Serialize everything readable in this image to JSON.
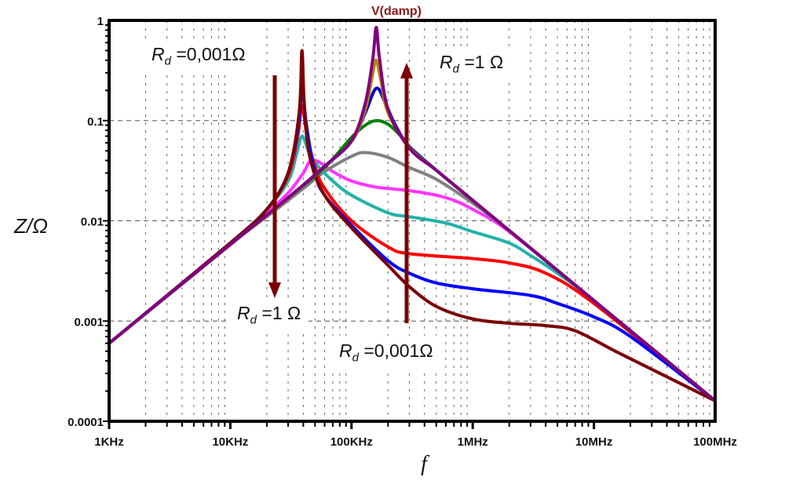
{
  "chart_data": {
    "type": "line",
    "title": "V(damp)",
    "xlabel": "f",
    "ylabel": "Z/Ω",
    "xscale": "log",
    "yscale": "log",
    "xlim": [
      1000.0,
      100000000.0
    ],
    "ylim": [
      0.0001,
      1
    ],
    "grid": true,
    "x_ticks": [
      {
        "value": 1000.0,
        "label": "1KHz"
      },
      {
        "value": 10000.0,
        "label": "10KHz"
      },
      {
        "value": 100000.0,
        "label": "100KHz"
      },
      {
        "value": 1000000.0,
        "label": "1MHz"
      },
      {
        "value": 10000000.0,
        "label": "10MHz"
      },
      {
        "value": 100000000.0,
        "label": "100MHz"
      }
    ],
    "y_ticks": [
      {
        "value": 1,
        "label": "1"
      },
      {
        "value": 0.1,
        "label": "0.1"
      },
      {
        "value": 0.01,
        "label": "0.01"
      },
      {
        "value": 0.001,
        "label": "0.001"
      },
      {
        "value": 0.0001,
        "label": "0.0001"
      }
    ],
    "series": [
      {
        "color": "#ff33ff",
        "points": [
          [
            1000.0,
            0.0006
          ],
          [
            10000.0,
            0.006
          ],
          [
            20000.0,
            0.012
          ],
          [
            30000.0,
            0.019
          ],
          [
            40000.0,
            0.03
          ],
          [
            46000.0,
            0.04
          ],
          [
            55000.0,
            0.038
          ],
          [
            70000.0,
            0.031
          ],
          [
            100000.0,
            0.025
          ],
          [
            150000.0,
            0.022
          ],
          [
            200000.0,
            0.021
          ],
          [
            300000.0,
            0.02
          ],
          [
            500000.0,
            0.018
          ],
          [
            700000.0,
            0.016
          ],
          [
            1000000.0,
            0.013
          ],
          [
            2000000.0,
            0.0078
          ],
          [
            10000000.0,
            0.0016
          ],
          [
            100000000.0,
            0.00016
          ]
        ]
      },
      {
        "color": "#808080",
        "points": [
          [
            1000.0,
            0.0006
          ],
          [
            10000.0,
            0.0058
          ],
          [
            20000.0,
            0.011
          ],
          [
            40000.0,
            0.021
          ],
          [
            60000.0,
            0.031
          ],
          [
            100000.0,
            0.044
          ],
          [
            130000.0,
            0.048
          ],
          [
            200000.0,
            0.043
          ],
          [
            300000.0,
            0.034
          ],
          [
            500000.0,
            0.026
          ],
          [
            1000000.0,
            0.015
          ],
          [
            2000000.0,
            0.008
          ],
          [
            10000000.0,
            0.0016
          ],
          [
            100000000.0,
            0.00016
          ]
        ]
      },
      {
        "color": "#20b2aa",
        "points": [
          [
            1000.0,
            0.0006
          ],
          [
            10000.0,
            0.006
          ],
          [
            20000.0,
            0.013
          ],
          [
            30000.0,
            0.025
          ],
          [
            35000.0,
            0.045
          ],
          [
            39000.0,
            0.07
          ],
          [
            44000.0,
            0.05
          ],
          [
            50000.0,
            0.038
          ],
          [
            70000.0,
            0.025
          ],
          [
            100000.0,
            0.018
          ],
          [
            200000.0,
            0.012
          ],
          [
            300000.0,
            0.011
          ],
          [
            600000.0,
            0.0095
          ],
          [
            1000000.0,
            0.0078
          ],
          [
            2000000.0,
            0.006
          ],
          [
            3000000.0,
            0.0045
          ],
          [
            5000000.0,
            0.003
          ],
          [
            10000000.0,
            0.0016
          ],
          [
            100000000.0,
            0.00016
          ]
        ]
      },
      {
        "color": "#ff0000",
        "points": [
          [
            1000.0,
            0.0006
          ],
          [
            10000.0,
            0.006
          ],
          [
            20000.0,
            0.013
          ],
          [
            30000.0,
            0.028
          ],
          [
            36000.0,
            0.07
          ],
          [
            39000.0,
            0.14
          ],
          [
            43000.0,
            0.07
          ],
          [
            50000.0,
            0.035
          ],
          [
            60000.0,
            0.021
          ],
          [
            100000.0,
            0.01
          ],
          [
            200000.0,
            0.0055
          ],
          [
            300000.0,
            0.0047
          ],
          [
            1000000.0,
            0.0042
          ],
          [
            2000000.0,
            0.0038
          ],
          [
            4000000.0,
            0.003
          ],
          [
            10000000.0,
            0.0015
          ],
          [
            100000000.0,
            0.00016
          ]
        ]
      },
      {
        "color": "#0000ff",
        "points": [
          [
            1000.0,
            0.0006
          ],
          [
            10000.0,
            0.006
          ],
          [
            20000.0,
            0.013
          ],
          [
            30000.0,
            0.03
          ],
          [
            37000.0,
            0.1
          ],
          [
            39000.0,
            0.28
          ],
          [
            42000.0,
            0.1
          ],
          [
            50000.0,
            0.03
          ],
          [
            60000.0,
            0.018
          ],
          [
            100000.0,
            0.009
          ],
          [
            200000.0,
            0.004
          ],
          [
            300000.0,
            0.003
          ],
          [
            500000.0,
            0.0024
          ],
          [
            1000000.0,
            0.0021
          ],
          [
            3000000.0,
            0.0018
          ],
          [
            5000000.0,
            0.0015
          ],
          [
            10000000.0,
            0.0011
          ],
          [
            20000000.0,
            0.0007
          ],
          [
            100000000.0,
            0.00016
          ]
        ]
      },
      {
        "color": "#7b0000",
        "points": [
          [
            1000.0,
            0.0006
          ],
          [
            10000.0,
            0.006
          ],
          [
            20000.0,
            0.013
          ],
          [
            30000.0,
            0.03
          ],
          [
            37000.0,
            0.12
          ],
          [
            39000.0,
            0.5
          ],
          [
            41000.0,
            0.12
          ],
          [
            46000.0,
            0.04
          ],
          [
            60000.0,
            0.018
          ],
          [
            100000.0,
            0.0085
          ],
          [
            200000.0,
            0.0036
          ],
          [
            300000.0,
            0.0022
          ],
          [
            500000.0,
            0.0014
          ],
          [
            1000000.0,
            0.00105
          ],
          [
            2000000.0,
            0.00095
          ],
          [
            4000000.0,
            0.0009
          ],
          [
            7000000.0,
            0.0008
          ],
          [
            15000000.0,
            0.0005
          ],
          [
            30000000.0,
            0.00033
          ],
          [
            100000000.0,
            0.00016
          ]
        ]
      },
      {
        "color": "#008000",
        "points": [
          [
            1000.0,
            0.0006
          ],
          [
            10000.0,
            0.0058
          ],
          [
            30000.0,
            0.017
          ],
          [
            60000.0,
            0.034
          ],
          [
            100000.0,
            0.068
          ],
          [
            130000.0,
            0.09
          ],
          [
            160000.0,
            0.1
          ],
          [
            200000.0,
            0.092
          ],
          [
            250000.0,
            0.072
          ],
          [
            300000.0,
            0.055
          ],
          [
            500000.0,
            0.032
          ],
          [
            1000000.0,
            0.016
          ],
          [
            10000000.0,
            0.0016
          ],
          [
            100000000.0,
            0.00016
          ]
        ]
      },
      {
        "color": "#0000cd",
        "points": [
          [
            1000.0,
            0.0006
          ],
          [
            10000.0,
            0.0058
          ],
          [
            30000.0,
            0.017
          ],
          [
            60000.0,
            0.035
          ],
          [
            100000.0,
            0.062
          ],
          [
            130000.0,
            0.12
          ],
          [
            160000.0,
            0.21
          ],
          [
            190000.0,
            0.15
          ],
          [
            230000.0,
            0.09
          ],
          [
            300000.0,
            0.055
          ],
          [
            500000.0,
            0.032
          ],
          [
            1000000.0,
            0.016
          ],
          [
            10000000.0,
            0.0016
          ],
          [
            100000000.0,
            0.00016
          ]
        ]
      },
      {
        "color": "#b8860b",
        "points": [
          [
            1000.0,
            0.0006
          ],
          [
            10000.0,
            0.0058
          ],
          [
            30000.0,
            0.017
          ],
          [
            60000.0,
            0.035
          ],
          [
            100000.0,
            0.062
          ],
          [
            130000.0,
            0.13
          ],
          [
            150000.0,
            0.3
          ],
          [
            160000.0,
            0.4
          ],
          [
            175000.0,
            0.25
          ],
          [
            200000.0,
            0.12
          ],
          [
            300000.0,
            0.054
          ],
          [
            500000.0,
            0.032
          ],
          [
            1000000.0,
            0.016
          ],
          [
            10000000.0,
            0.0016
          ],
          [
            100000000.0,
            0.00016
          ]
        ]
      },
      {
        "color": "#800080",
        "points": [
          [
            1000.0,
            0.0006
          ],
          [
            10000.0,
            0.0058
          ],
          [
            30000.0,
            0.017
          ],
          [
            60000.0,
            0.035
          ],
          [
            100000.0,
            0.063
          ],
          [
            130000.0,
            0.15
          ],
          [
            150000.0,
            0.42
          ],
          [
            160000.0,
            0.85
          ],
          [
            170000.0,
            0.42
          ],
          [
            200000.0,
            0.13
          ],
          [
            300000.0,
            0.053
          ],
          [
            500000.0,
            0.032
          ],
          [
            1000000.0,
            0.016
          ],
          [
            10000000.0,
            0.0016
          ],
          [
            100000000.0,
            0.00016
          ]
        ]
      }
    ],
    "annotations": [
      {
        "symbol": "R",
        "subscript": "d",
        "text": " =0,001Ω"
      },
      {
        "symbol": "R",
        "subscript": "d",
        "text": " =1 Ω"
      },
      {
        "symbol": "R",
        "subscript": "d",
        "text": " =1 Ω"
      },
      {
        "symbol": "R",
        "subscript": "d",
        "text": " =0,001Ω"
      }
    ],
    "arrow_color": "#7b0000",
    "title_color": "#8b1a1a"
  }
}
